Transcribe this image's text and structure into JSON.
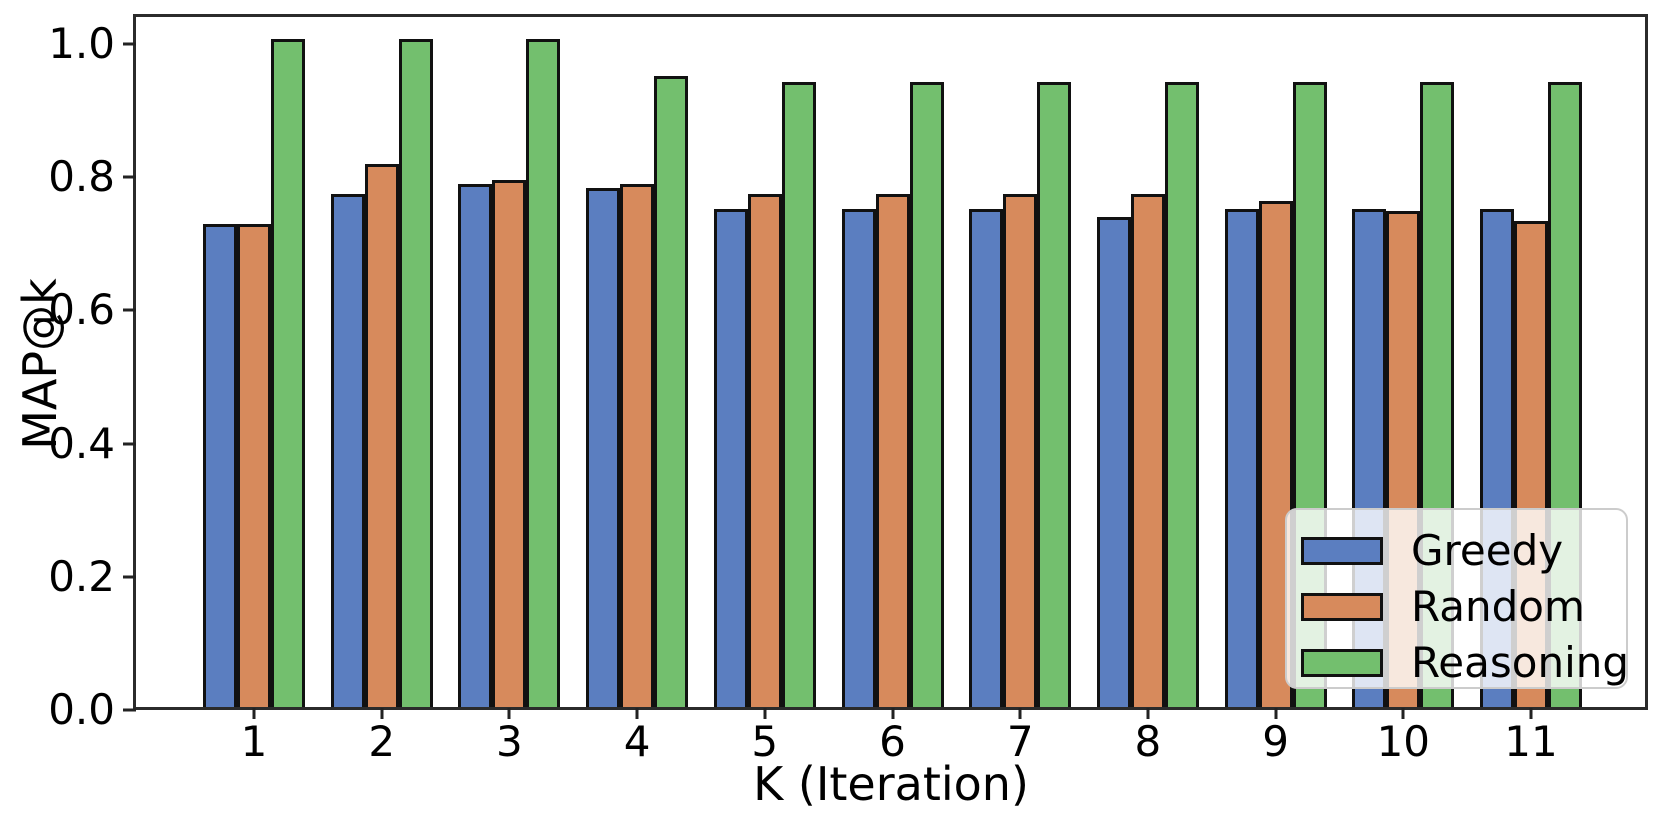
{
  "figure": {
    "background_color": "#ffffff",
    "spine_color": "#2b2b2b",
    "text_color": "#000000"
  },
  "chart_data": {
    "type": "bar",
    "title": "",
    "xlabel": "K (Iteration)",
    "ylabel": "MAP@k",
    "categories": [
      "1",
      "2",
      "3",
      "4",
      "5",
      "6",
      "7",
      "8",
      "9",
      "10",
      "11"
    ],
    "series": [
      {
        "name": "Greedy",
        "color": "#5b7ec0",
        "values": [
          0.722,
          0.768,
          0.782,
          0.777,
          0.744,
          0.744,
          0.744,
          0.733,
          0.744,
          0.744,
          0.744
        ]
      },
      {
        "name": "Random",
        "color": "#d78a5c",
        "values": [
          0.722,
          0.813,
          0.789,
          0.783,
          0.768,
          0.768,
          0.768,
          0.768,
          0.757,
          0.741,
          0.727
        ]
      },
      {
        "name": "Reasoning",
        "color": "#73bf6e",
        "values": [
          1.0,
          1.0,
          1.0,
          0.944,
          0.935,
          0.935,
          0.935,
          0.935,
          0.935,
          0.935,
          0.935
        ]
      }
    ],
    "bar_edge_color": "#111111",
    "ylim": [
      0.0,
      1.045
    ],
    "yticks": [
      0.0,
      0.2,
      0.4,
      0.6,
      0.8,
      1.0
    ],
    "ytick_labels": [
      "0.0",
      "0.2",
      "0.4",
      "0.6",
      "0.8",
      "1.0"
    ],
    "grid": false,
    "legend_position": "lower right"
  }
}
